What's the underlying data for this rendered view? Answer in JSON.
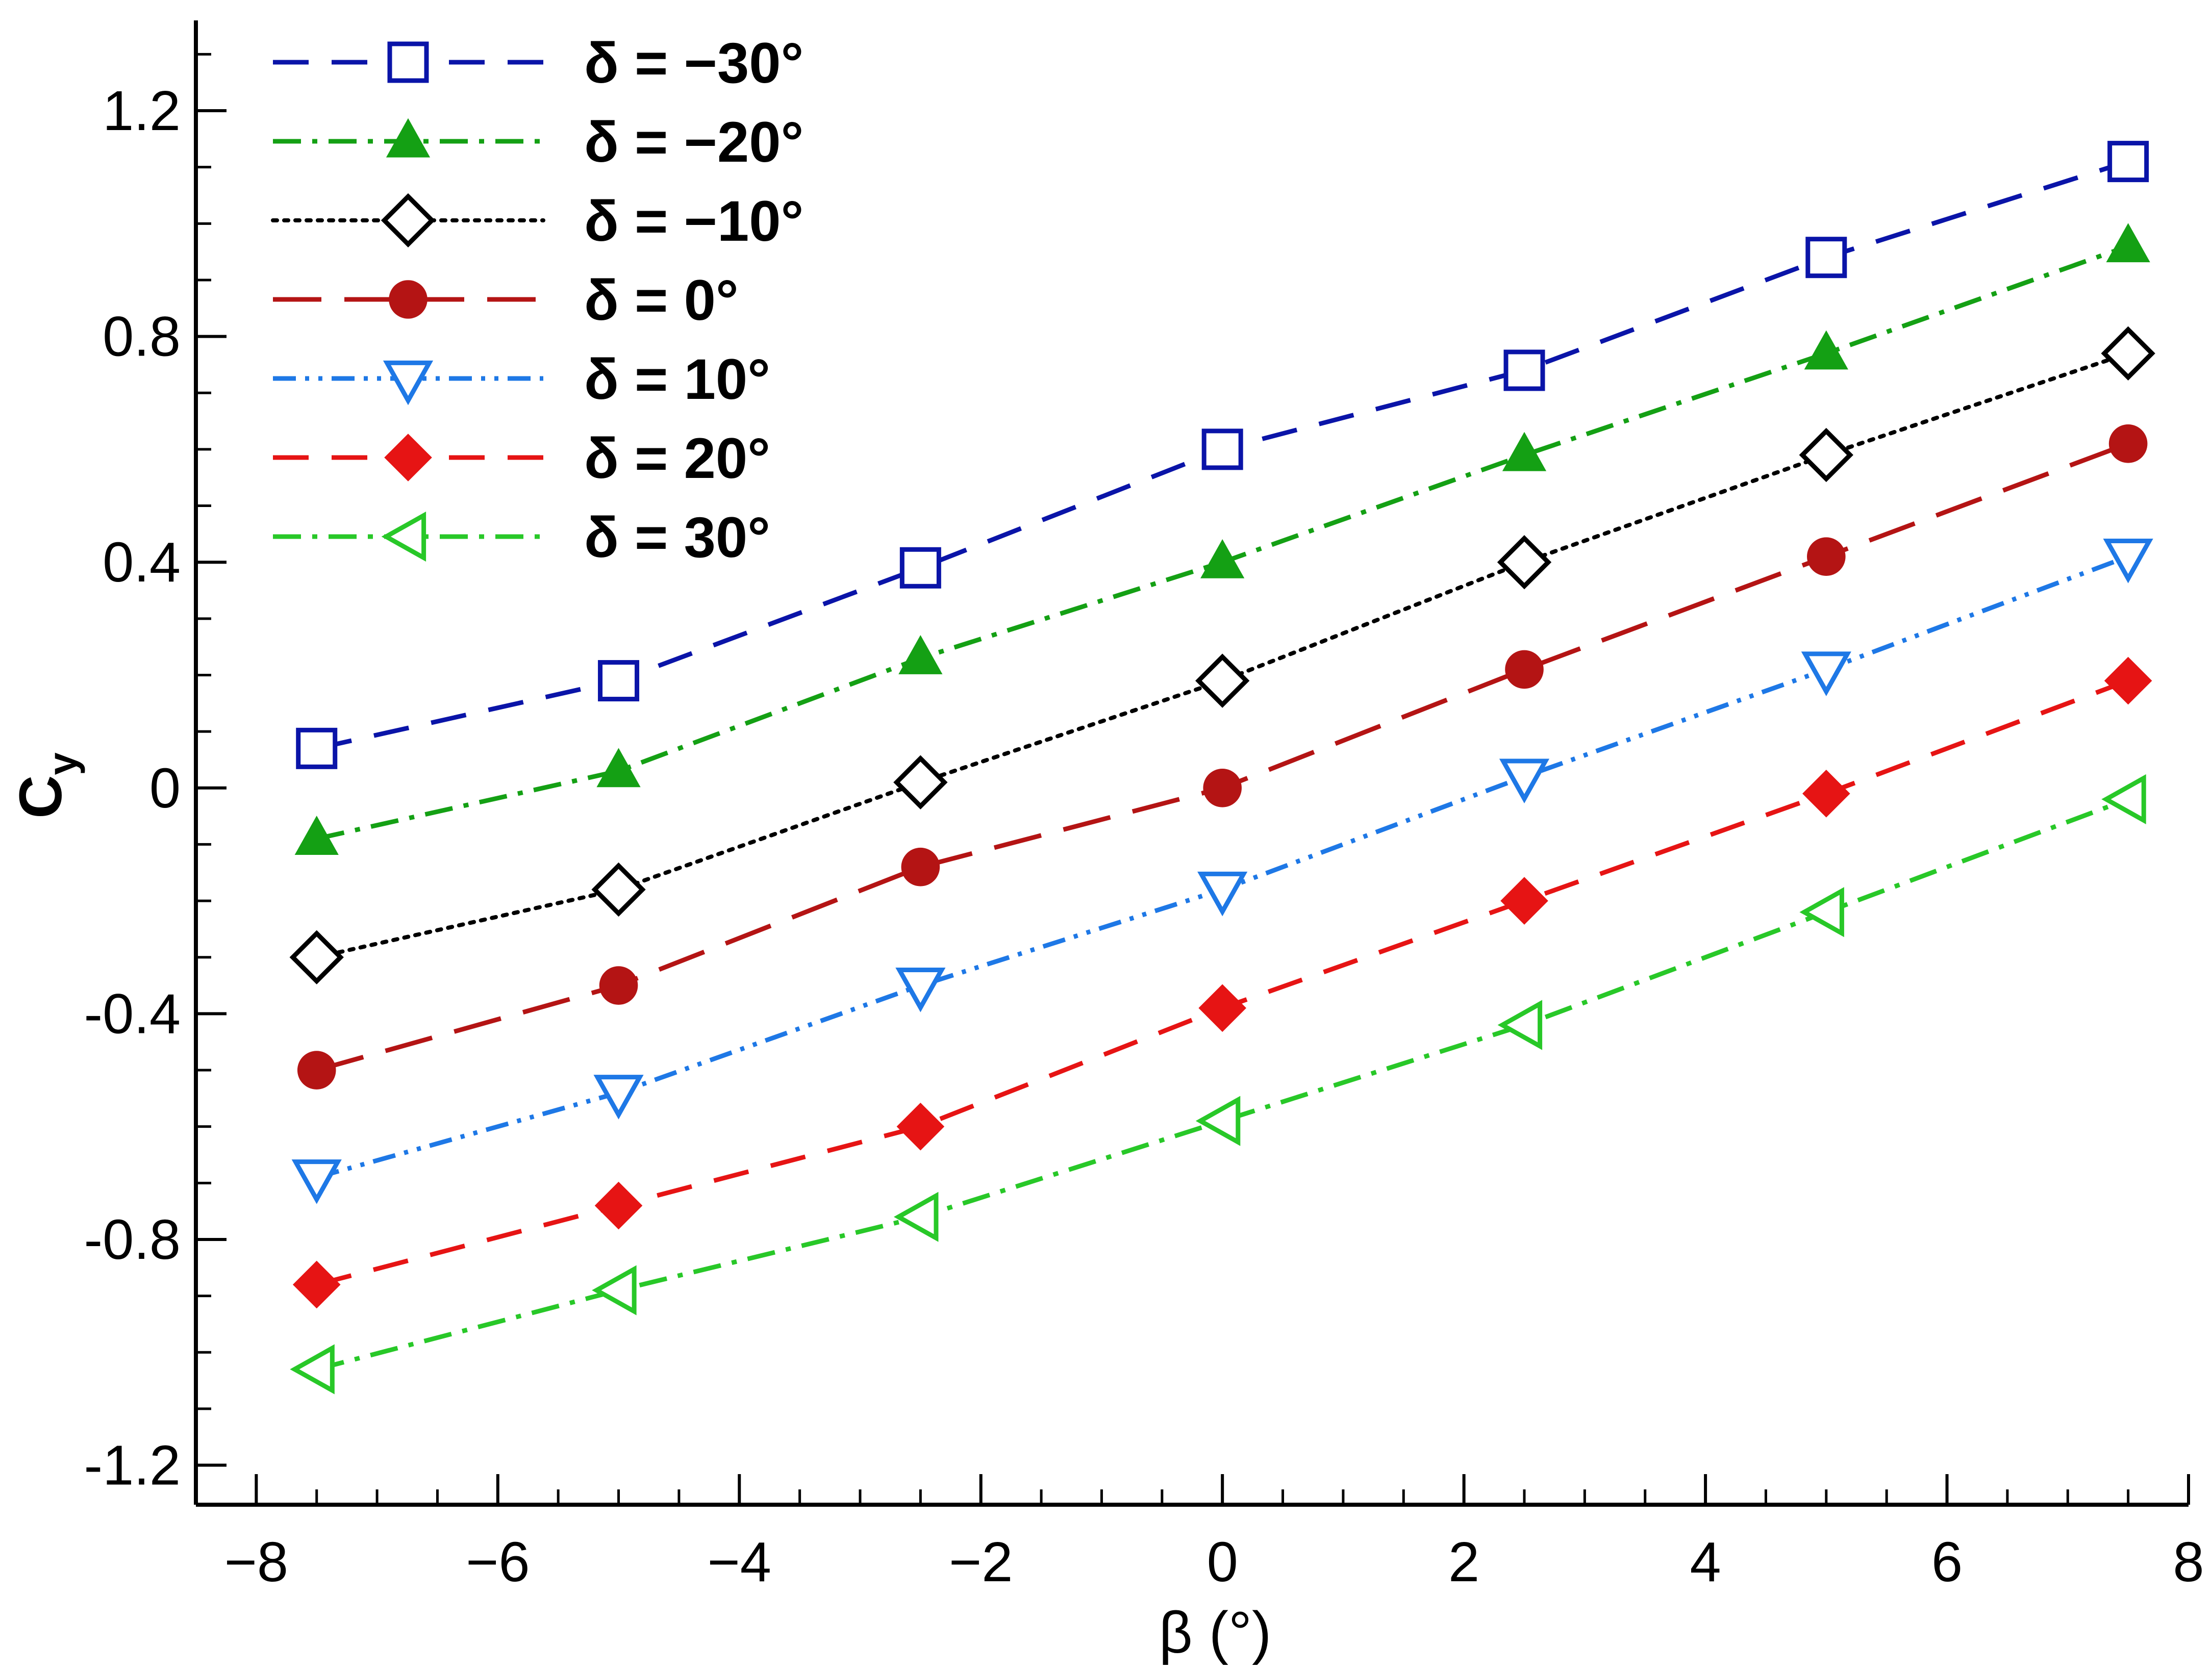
{
  "chart_data": {
    "type": "line",
    "title": "",
    "xlabel": "β (°)",
    "ylabel_main": "C",
    "ylabel_sub": "y",
    "xlim": [
      -8.5,
      8
    ],
    "ylim": [
      -1.27,
      1.36
    ],
    "x_ticks": [
      -8,
      -6,
      -4,
      -2,
      0,
      2,
      4,
      6,
      8
    ],
    "x_tick_labels": [
      "−8",
      "−6",
      "−4",
      "−2",
      "0",
      "2",
      "4",
      "6",
      "8"
    ],
    "y_ticks": [
      -1.2,
      -0.8,
      -0.4,
      0,
      0.4,
      0.8,
      1.2
    ],
    "y_tick_labels": [
      "-1.2",
      "-0.8",
      "-0.4",
      "0",
      "0.4",
      "0.8",
      "1.2"
    ],
    "grid": false,
    "legend_position": "top-left",
    "x": [
      -7.5,
      -5,
      -2.5,
      0,
      2.5,
      5,
      7.5
    ],
    "series": [
      {
        "name": "δ = −30°",
        "values": [
          0.07,
          0.19,
          0.39,
          0.6,
          0.74,
          0.94,
          1.11
        ],
        "color": "#0a14a8",
        "marker": "square-open",
        "dash": "dash"
      },
      {
        "name": "δ = −20°",
        "values": [
          -0.09,
          0.03,
          0.23,
          0.4,
          0.59,
          0.77,
          0.96
        ],
        "color": "#14a014",
        "marker": "triangle-up-filled",
        "dash": "dashdot"
      },
      {
        "name": "δ = −10°",
        "values": [
          -0.3,
          -0.18,
          0.01,
          0.19,
          0.4,
          0.59,
          0.77
        ],
        "color": "#000000",
        "marker": "diamond-open",
        "dash": "dot"
      },
      {
        "name": "δ = 0°",
        "values": [
          -0.5,
          -0.35,
          -0.14,
          0.0,
          0.21,
          0.41,
          0.61
        ],
        "color": "#b41414",
        "marker": "circle-filled",
        "dash": "longdash"
      },
      {
        "name": "δ = 10°",
        "values": [
          -0.69,
          -0.54,
          -0.35,
          -0.18,
          0.02,
          0.21,
          0.41
        ],
        "color": "#1e78e6",
        "marker": "triangle-down-open",
        "dash": "dashdotdot"
      },
      {
        "name": "δ = 20°",
        "values": [
          -0.88,
          -0.74,
          -0.6,
          -0.39,
          -0.2,
          -0.01,
          0.19
        ],
        "color": "#e61414",
        "marker": "diamond-filled",
        "dash": "dash"
      },
      {
        "name": "δ = 30°",
        "values": [
          -1.03,
          -0.89,
          -0.76,
          -0.59,
          -0.42,
          -0.22,
          -0.02
        ],
        "color": "#28c828",
        "marker": "triangle-left-open",
        "dash": "dashdot"
      }
    ]
  }
}
